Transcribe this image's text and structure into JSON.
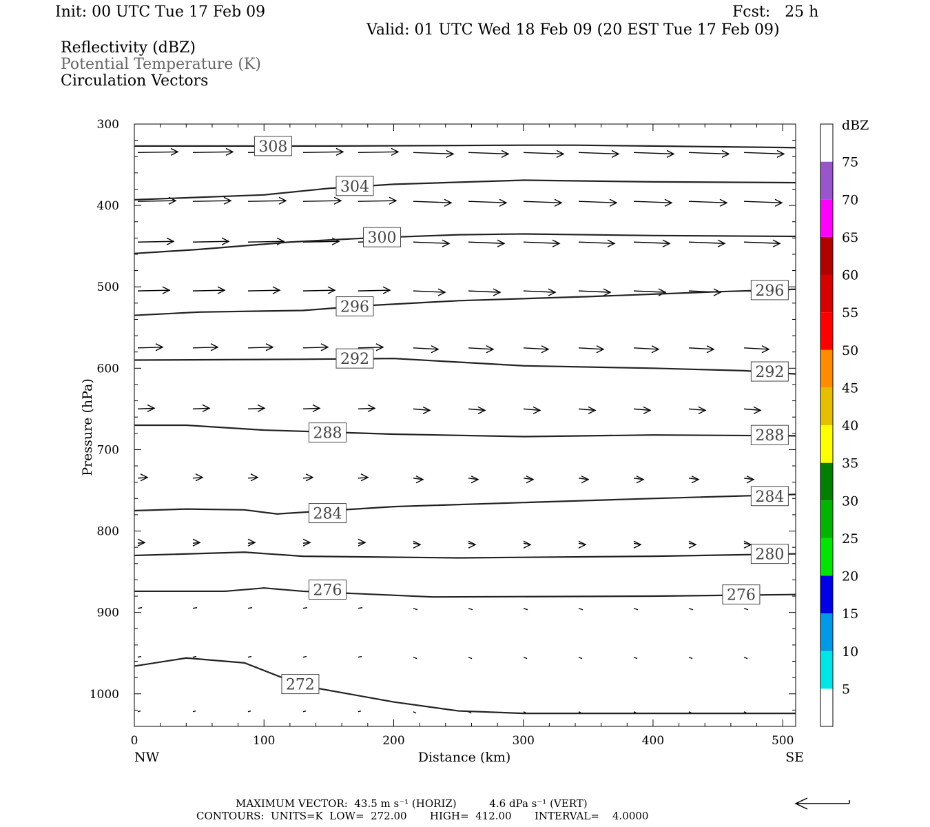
{
  "header": {
    "init": "Init: 00 UTC Tue 17 Feb 09",
    "fcst": "Fcst:   25 h",
    "valid": "Valid: 01 UTC Wed 18 Feb 09 (20 EST Tue 17 Feb 09)",
    "fields": [
      "Reflectivity (dBZ)",
      "Potential Temperature (K)",
      "Circulation Vectors"
    ]
  },
  "footer": {
    "line1": "MAXIMUM VECTOR:  43.5 m s⁻¹ (HORIZ)          4.6 dPa s⁻¹ (VERT)",
    "line2": "CONTOURS:  UNITS=K  LOW=  272.00       HIGH=  412.00       INTERVAL=    4.0000"
  },
  "chart_data": {
    "type": "contour",
    "xlabel": "Distance (km)",
    "ylabel": "Pressure (hPa)",
    "xlim": [
      0,
      510
    ],
    "ylim": [
      1040,
      300
    ],
    "x_ticks": [
      0,
      100,
      200,
      300,
      400,
      500
    ],
    "y_ticks": [
      300,
      400,
      500,
      600,
      700,
      800,
      900,
      1000
    ],
    "x_end_labels": {
      "left": "NW",
      "right": "SE"
    },
    "colorbar": {
      "title": "dBZ",
      "levels": [
        5,
        10,
        15,
        20,
        25,
        30,
        35,
        40,
        45,
        50,
        55,
        60,
        65,
        70,
        75
      ],
      "colors": [
        "#ffffff",
        "#00e6e6",
        "#0099e6",
        "#0000e6",
        "#00e600",
        "#00b400",
        "#008000",
        "#ffff00",
        "#e6c000",
        "#ff8c00",
        "#ff0000",
        "#d70000",
        "#b00000",
        "#ff00ff",
        "#9955cc",
        "#ffffff"
      ]
    },
    "theta_contours": [
      {
        "value": 308,
        "points": [
          [
            0,
            327
          ],
          [
            150,
            327
          ],
          [
            300,
            326
          ],
          [
            340,
            326
          ],
          [
            400,
            327
          ],
          [
            510,
            329
          ]
        ],
        "labels": [
          [
            107,
            327
          ]
        ]
      },
      {
        "value": 304,
        "points": [
          [
            0,
            393
          ],
          [
            100,
            387
          ],
          [
            150,
            379
          ],
          [
            200,
            374
          ],
          [
            300,
            369
          ],
          [
            400,
            371
          ],
          [
            510,
            372
          ]
        ],
        "labels": [
          [
            170,
            376
          ]
        ]
      },
      {
        "value": 300,
        "points": [
          [
            0,
            459
          ],
          [
            50,
            454
          ],
          [
            120,
            445
          ],
          [
            180,
            440
          ],
          [
            250,
            436
          ],
          [
            300,
            435
          ],
          [
            400,
            437
          ],
          [
            510,
            438
          ]
        ],
        "labels": [
          [
            191,
            439
          ]
        ]
      },
      {
        "value": 296,
        "points": [
          [
            0,
            535
          ],
          [
            50,
            531
          ],
          [
            130,
            529
          ],
          [
            180,
            523
          ],
          [
            250,
            517
          ],
          [
            350,
            512
          ],
          [
            450,
            506
          ],
          [
            510,
            503
          ]
        ],
        "labels": [
          [
            170,
            524
          ],
          [
            490,
            504
          ]
        ]
      },
      {
        "value": 292,
        "points": [
          [
            0,
            590
          ],
          [
            130,
            589
          ],
          [
            200,
            588
          ],
          [
            300,
            597
          ],
          [
            400,
            600
          ],
          [
            470,
            603
          ],
          [
            510,
            607
          ]
        ],
        "labels": [
          [
            170,
            588
          ],
          [
            490,
            604
          ]
        ]
      },
      {
        "value": 288,
        "points": [
          [
            0,
            670
          ],
          [
            40,
            670
          ],
          [
            100,
            676
          ],
          [
            200,
            681
          ],
          [
            300,
            684
          ],
          [
            400,
            682
          ],
          [
            510,
            683
          ]
        ],
        "labels": [
          [
            149,
            679
          ],
          [
            490,
            682
          ]
        ]
      },
      {
        "value": 284,
        "points": [
          [
            0,
            775
          ],
          [
            40,
            773
          ],
          [
            85,
            774
          ],
          [
            110,
            779
          ],
          [
            200,
            770
          ],
          [
            300,
            765
          ],
          [
            400,
            760
          ],
          [
            510,
            755
          ]
        ],
        "labels": [
          [
            149,
            778
          ],
          [
            490,
            757
          ]
        ]
      },
      {
        "value": 280,
        "points": [
          [
            0,
            830
          ],
          [
            85,
            826
          ],
          [
            130,
            831
          ],
          [
            250,
            833
          ],
          [
            400,
            831
          ],
          [
            510,
            828
          ]
        ],
        "labels": [
          [
            490,
            828
          ]
        ]
      },
      {
        "value": 276,
        "points": [
          [
            0,
            874
          ],
          [
            70,
            874
          ],
          [
            100,
            870
          ],
          [
            130,
            874
          ],
          [
            230,
            881
          ],
          [
            400,
            880
          ],
          [
            510,
            878
          ]
        ],
        "labels": [
          [
            149,
            872
          ],
          [
            468,
            878
          ]
        ]
      },
      {
        "value": 272,
        "points": [
          [
            0,
            966
          ],
          [
            40,
            956
          ],
          [
            85,
            962
          ],
          [
            130,
            990
          ],
          [
            200,
            1010
          ],
          [
            250,
            1021
          ],
          [
            300,
            1024
          ],
          [
            510,
            1024
          ]
        ],
        "labels": [
          [
            128,
            988
          ]
        ]
      }
    ]
  }
}
